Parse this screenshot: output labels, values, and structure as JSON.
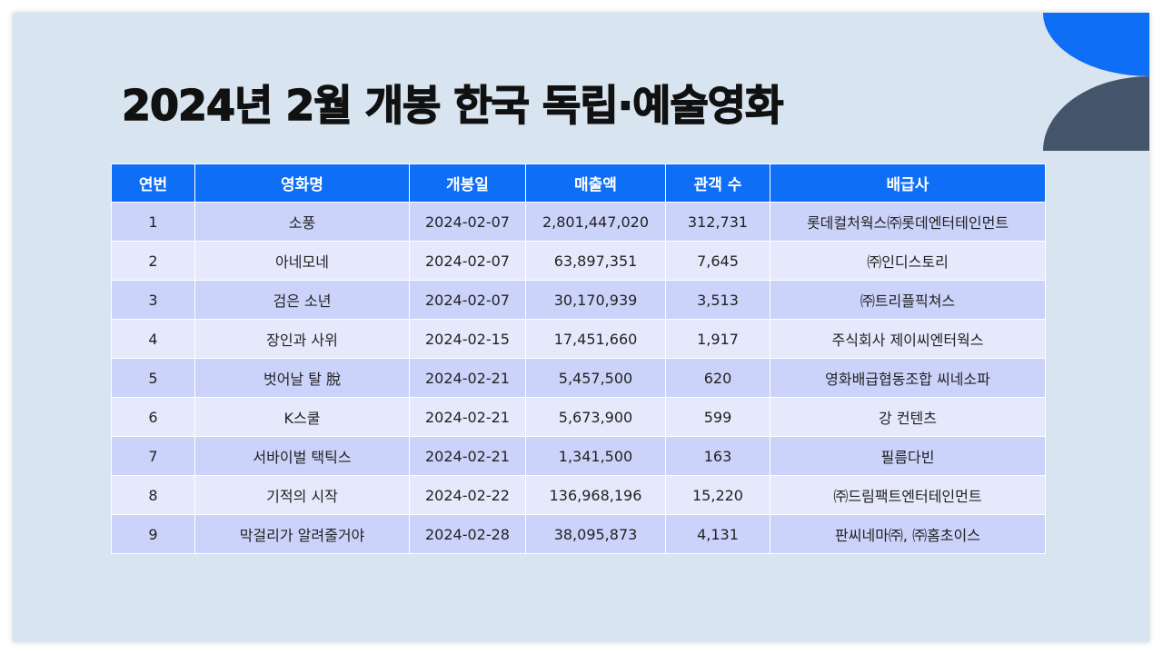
{
  "slide": {
    "title": "2024년 2월 개봉 한국 독립·예술영화"
  },
  "colors": {
    "slide_background": "#d8e4ef",
    "header_blue": "#0f6ef6",
    "row_odd": "#ccd3fa",
    "row_even": "#e6e9fc",
    "deco_blue": "#0f6ef6",
    "deco_slate": "#44546a"
  },
  "table": {
    "headers": [
      "연번",
      "영화명",
      "개봉일",
      "매출액",
      "관객 수",
      "배급사"
    ],
    "rows": [
      [
        "1",
        "소풍",
        "2024-02-07",
        "2,801,447,020",
        "312,731",
        "롯데컬처웍스㈜롯데엔터테인먼트"
      ],
      [
        "2",
        "아네모네",
        "2024-02-07",
        "63,897,351",
        "7,645",
        "㈜인디스토리"
      ],
      [
        "3",
        "검은 소년",
        "2024-02-07",
        "30,170,939",
        "3,513",
        "㈜트리플픽쳐스"
      ],
      [
        "4",
        "장인과 사위",
        "2024-02-15",
        "17,451,660",
        "1,917",
        "주식회사 제이씨엔터웍스"
      ],
      [
        "5",
        "벗어날 탈 脫",
        "2024-02-21",
        "5,457,500",
        "620",
        "영화배급협동조합 씨네소파"
      ],
      [
        "6",
        "K스쿨",
        "2024-02-21",
        "5,673,900",
        "599",
        "강 컨텐츠"
      ],
      [
        "7",
        "서바이벌 택틱스",
        "2024-02-21",
        "1,341,500",
        "163",
        "필름다빈"
      ],
      [
        "8",
        "기적의 시작",
        "2024-02-22",
        "136,968,196",
        "15,220",
        "㈜드림팩트엔터테인먼트"
      ],
      [
        "9",
        "막걸리가 알려줄거야",
        "2024-02-28",
        "38,095,873",
        "4,131",
        "판씨네마㈜, ㈜홈초이스"
      ]
    ]
  }
}
